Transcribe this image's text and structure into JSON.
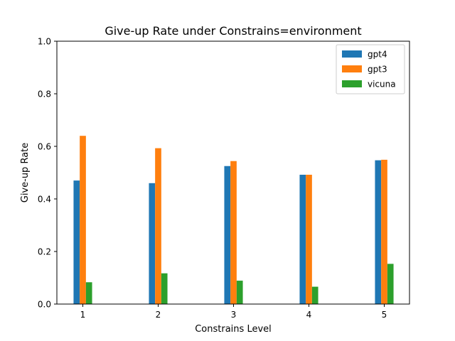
{
  "chart_data": {
    "type": "bar",
    "title": "Give-up Rate under Constrains=environment",
    "xlabel": "Constrains Level",
    "ylabel": "Give-up Rate",
    "categories": [
      "1",
      "2",
      "3",
      "4",
      "5"
    ],
    "ylim": [
      0,
      1.0
    ],
    "yticks": [
      "0.0",
      "0.2",
      "0.4",
      "0.6",
      "0.8",
      "1.0"
    ],
    "grid": false,
    "legend_position": "top-right",
    "series": [
      {
        "name": "gpt4",
        "color": "#1f77b4",
        "values": [
          0.47,
          0.46,
          0.525,
          0.492,
          0.547
        ]
      },
      {
        "name": "gpt3",
        "color": "#ff7f0e",
        "values": [
          0.64,
          0.593,
          0.544,
          0.492,
          0.549
        ]
      },
      {
        "name": "vicuna",
        "color": "#2ca02c",
        "values": [
          0.083,
          0.117,
          0.089,
          0.066,
          0.153
        ]
      }
    ]
  }
}
